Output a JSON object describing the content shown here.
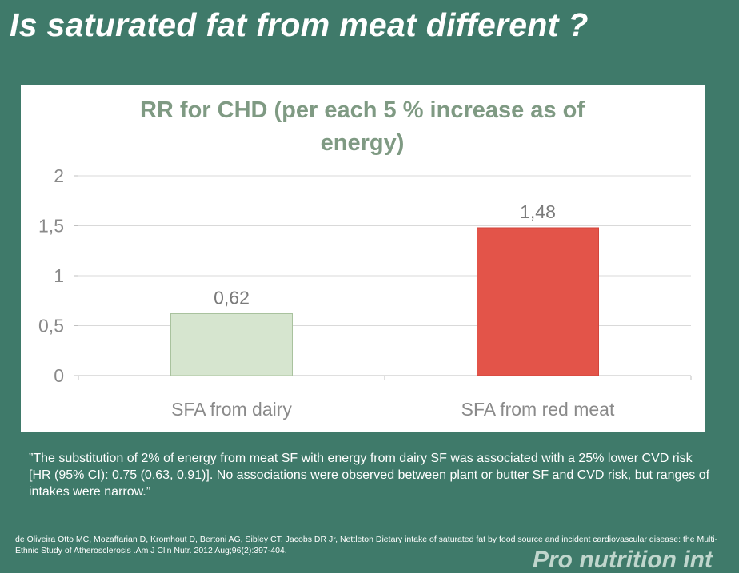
{
  "slide": {
    "title": "Is saturated fat from meat different ?",
    "quote": "”The substitution of 2% of energy from meat SF with energy from dairy SF was associated with a 25% lower CVD risk [HR (95% CI): 0.75 (0.63, 0.91)]. No associations were observed between plant or butter SF and CVD risk, but ranges of intakes were narrow.”",
    "citation": "de Oliveira Otto MC, Mozaffarian D, Kromhout D, Bertoni AG, Sibley CT, Jacobs DR Jr, Nettleton Dietary intake of saturated fat by food source and incident cardiovascular disease: the Multi-Ethnic Study of Atherosclerosis .Am J Clin Nutr. 2012 Aug;96(2):397-404.",
    "watermark": "Pro nutrition int"
  },
  "chart_data": {
    "type": "bar",
    "title_lines": [
      "RR for CHD (per each 5 % increase as of",
      "energy)"
    ],
    "categories": [
      "SFA from dairy",
      "SFA from red meat"
    ],
    "values": [
      0.62,
      1.48
    ],
    "data_labels": [
      "0,62",
      "1,48"
    ],
    "bar_colors": [
      "#d6e5cf",
      "#e35449"
    ],
    "bar_stroke_colors": [
      "#a9c29e",
      "#d2453c"
    ],
    "yticks": [
      0,
      0.5,
      1,
      1.5,
      2
    ],
    "ytick_labels": [
      "0",
      "0,5",
      "1",
      "1,5",
      "2"
    ],
    "ylim": [
      0,
      2
    ],
    "grid": true,
    "legend": "none"
  }
}
